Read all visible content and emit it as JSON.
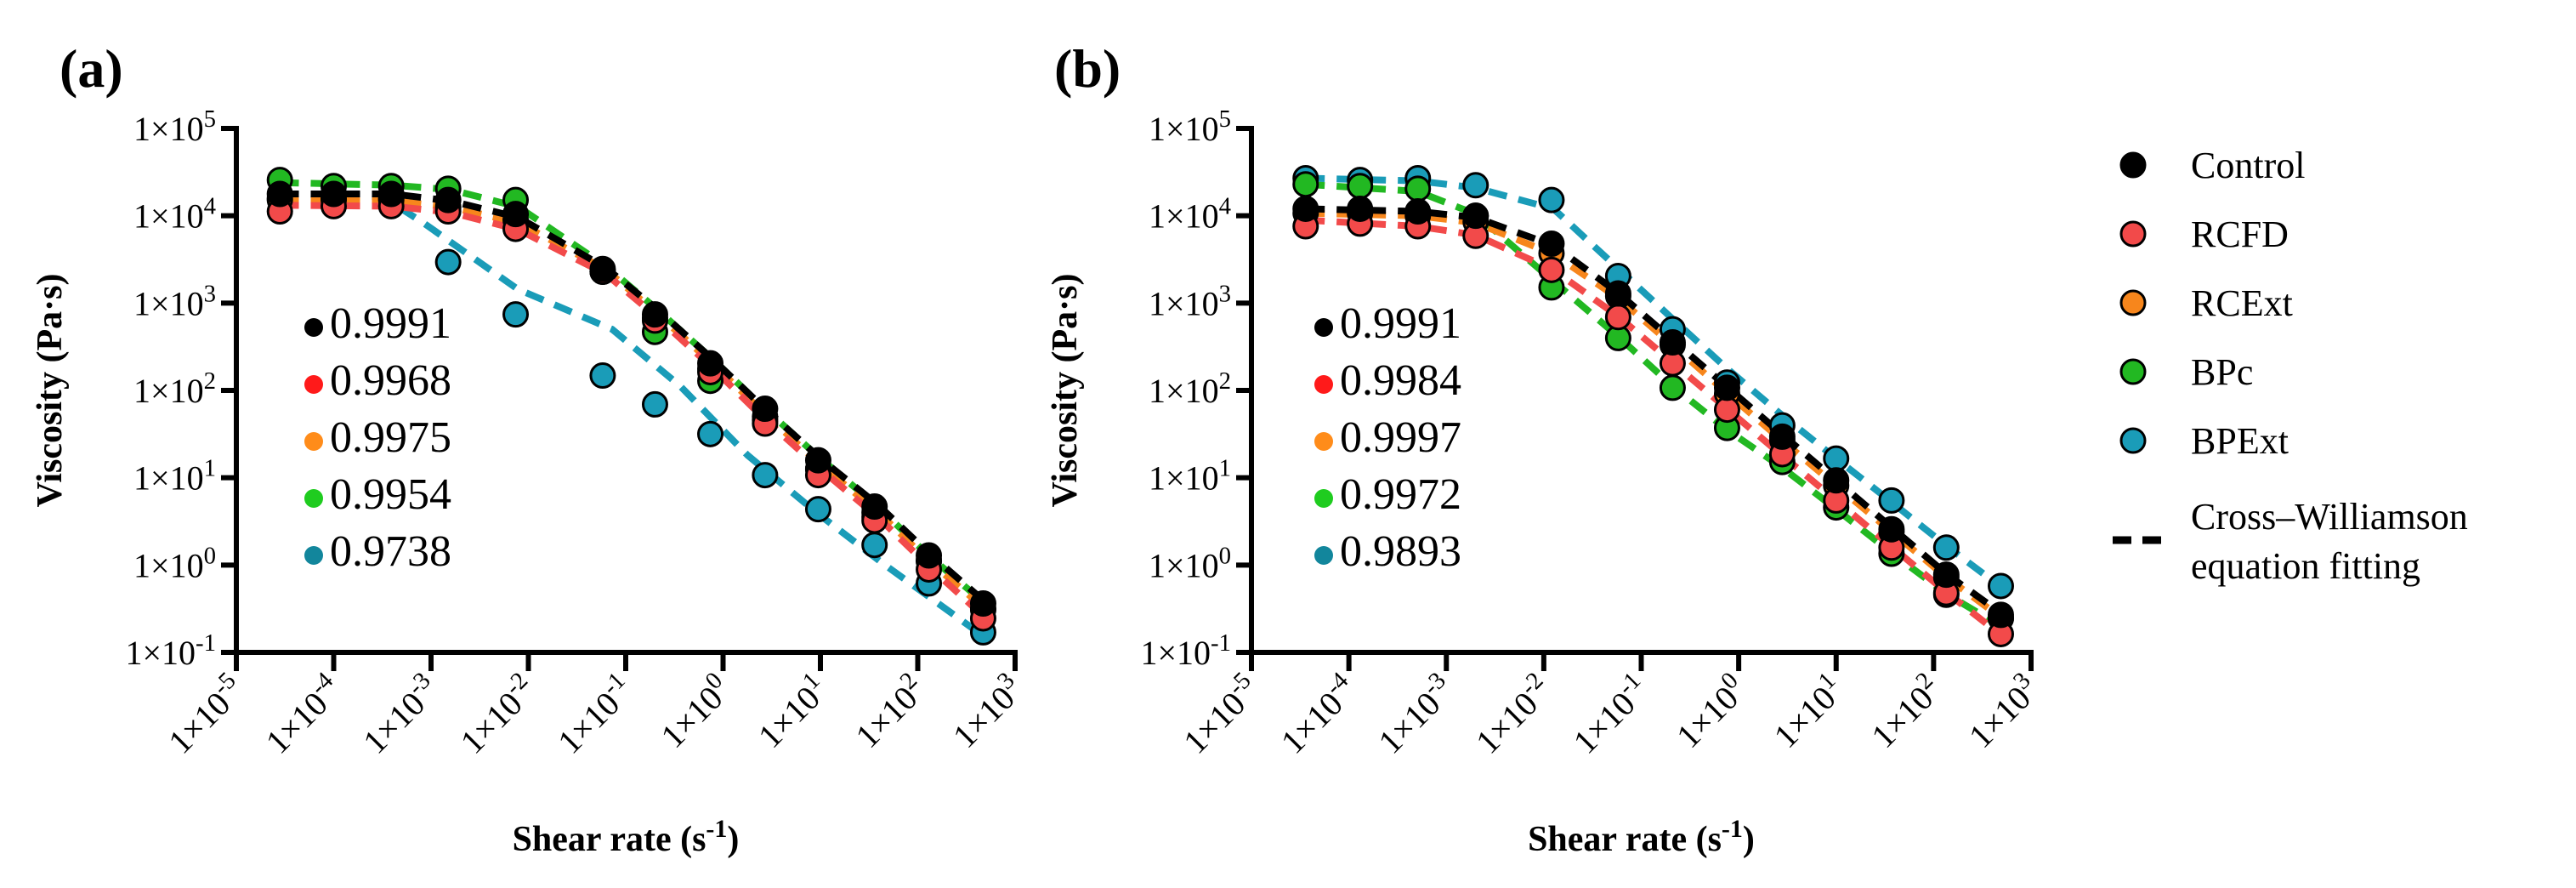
{
  "colors": {
    "Control": "#000000",
    "RCFD": "#f24a4a",
    "RCExt": "#f7861c",
    "BPc": "#22b822",
    "BPExt": "#1a9cb8"
  },
  "annotation_colors": [
    "#000000",
    "#ff1a1a",
    "#ff8c1a",
    "#1fcc1f",
    "#12869c"
  ],
  "legend": {
    "items": [
      "Control",
      "RCFD",
      "RCExt",
      "BPc",
      "BPExt"
    ],
    "fit_label_line1": "Cross–Williamson",
    "fit_label_line2": "equation fitting"
  },
  "chart_data": [
    {
      "type": "scatter",
      "panel_label": "(a)",
      "xlabel": "Shear rate (s",
      "xlabel_sup": "-1",
      "xlabel_end": ")",
      "ylabel": "Viscosity (Pa·s)",
      "xscale": "log",
      "yscale": "log",
      "xlim": [
        1e-05,
        1000.0
      ],
      "ylim": [
        0.1,
        100000.0
      ],
      "xticks": [
        {
          "base": "1×10",
          "exp": "-5"
        },
        {
          "base": "1×10",
          "exp": "-4"
        },
        {
          "base": "1×10",
          "exp": "-3"
        },
        {
          "base": "1×10",
          "exp": "-2"
        },
        {
          "base": "1×10",
          "exp": "-1"
        },
        {
          "base": "1×10",
          "exp": "0"
        },
        {
          "base": "1×10",
          "exp": "1"
        },
        {
          "base": "1×10",
          "exp": "2"
        },
        {
          "base": "1×10",
          "exp": "3"
        }
      ],
      "yticks": [
        {
          "base": "1×10",
          "exp": "5"
        },
        {
          "base": "1×10",
          "exp": "4"
        },
        {
          "base": "1×10",
          "exp": "3"
        },
        {
          "base": "1×10",
          "exp": "2"
        },
        {
          "base": "1×10",
          "exp": "1"
        },
        {
          "base": "1×10",
          "exp": "0"
        },
        {
          "base": "1×10",
          "exp": "-1"
        }
      ],
      "r2_values": [
        "0.9991",
        "0.9968",
        "0.9975",
        "0.9954",
        "0.9738"
      ],
      "x": [
        2.8e-05,
        0.0001,
        0.00039,
        0.0015,
        0.0074,
        0.058,
        0.2,
        0.74,
        2.7,
        9.5,
        36,
        130,
        470
      ],
      "series": [
        {
          "name": "Control",
          "log10_y": [
            4.25,
            4.25,
            4.25,
            4.18,
            4.02,
            3.39,
            2.87,
            2.31,
            1.79,
            1.2,
            0.67,
            0.11,
            -0.44
          ]
        },
        {
          "name": "RCFD",
          "log10_y": [
            4.05,
            4.11,
            4.11,
            4.05,
            3.85,
            3.36,
            2.8,
            2.21,
            1.62,
            1.03,
            0.51,
            -0.05,
            -0.61
          ]
        },
        {
          "name": "RCExt",
          "log10_y": [
            4.18,
            4.18,
            4.18,
            4.1,
            3.95,
            3.36,
            2.83,
            2.25,
            1.7,
            1.1,
            0.6,
            0.05,
            -0.5
          ]
        },
        {
          "name": "BPc",
          "log10_y": [
            4.41,
            4.34,
            4.34,
            4.31,
            4.18,
            3.36,
            2.67,
            2.11,
            1.66,
            1.1,
            0.55,
            0.05,
            -0.51
          ]
        },
        {
          "name": "BPExt",
          "log10_y": [
            4.2,
            4.2,
            4.2,
            3.47,
            2.87,
            2.17,
            1.84,
            1.5,
            1.03,
            0.64,
            0.23,
            -0.21,
            -0.77
          ]
        }
      ],
      "fits": [
        {
          "name": "Control",
          "log10_x": [
            -4.55,
            -3.4,
            -2.8,
            -2.1,
            -1.2,
            -0.7,
            -0.1,
            0.4,
            1.0,
            1.6,
            2.1,
            2.67
          ],
          "log10_y": [
            4.25,
            4.25,
            4.17,
            3.98,
            3.4,
            2.95,
            2.35,
            1.82,
            1.22,
            0.68,
            0.15,
            -0.4
          ]
        },
        {
          "name": "RCFD",
          "log10_x": [
            -4.55,
            -3.4,
            -2.8,
            -2.1,
            -1.2,
            -0.7,
            -0.1,
            0.4,
            1.0,
            1.6,
            2.1,
            2.67
          ],
          "log10_y": [
            4.12,
            4.11,
            4.04,
            3.84,
            3.33,
            2.86,
            2.25,
            1.7,
            1.1,
            0.54,
            0.0,
            -0.58
          ]
        },
        {
          "name": "RCExt",
          "log10_x": [
            -4.55,
            -3.4,
            -2.8,
            -2.1,
            -1.2,
            -0.7,
            -0.1,
            0.4,
            1.0,
            1.6,
            2.1,
            2.67
          ],
          "log10_y": [
            4.18,
            4.17,
            4.1,
            3.92,
            3.38,
            2.9,
            2.3,
            1.76,
            1.15,
            0.6,
            0.06,
            -0.48
          ]
        },
        {
          "name": "BPc",
          "log10_x": [
            -4.55,
            -3.4,
            -2.8,
            -2.1,
            -1.2,
            -0.7,
            -0.1,
            0.4,
            1.0,
            1.6,
            2.1,
            2.67
          ],
          "log10_y": [
            4.38,
            4.35,
            4.3,
            4.1,
            3.42,
            2.95,
            2.35,
            1.82,
            1.22,
            0.66,
            0.12,
            -0.42
          ]
        },
        {
          "name": "BPExt",
          "log10_x": [
            -4.55,
            -3.5,
            -3.08,
            -2.11,
            -1.14,
            -0.44,
            0.25,
            0.95,
            1.64,
            2.62
          ],
          "log10_y": [
            4.25,
            4.22,
            3.92,
            3.16,
            2.7,
            2.05,
            1.26,
            0.61,
            0.02,
            -0.77
          ]
        }
      ]
    },
    {
      "type": "scatter",
      "panel_label": "(b)",
      "xlabel": "Shear rate (s",
      "xlabel_sup": "-1",
      "xlabel_end": ")",
      "ylabel": "Viscosity (Pa·s)",
      "xscale": "log",
      "yscale": "log",
      "xlim": [
        1e-05,
        1000.0
      ],
      "ylim": [
        0.1,
        100000.0
      ],
      "xticks": [
        {
          "base": "1×10",
          "exp": "-5"
        },
        {
          "base": "1×10",
          "exp": "-4"
        },
        {
          "base": "1×10",
          "exp": "-3"
        },
        {
          "base": "1×10",
          "exp": "-2"
        },
        {
          "base": "1×10",
          "exp": "-1"
        },
        {
          "base": "1×10",
          "exp": "0"
        },
        {
          "base": "1×10",
          "exp": "1"
        },
        {
          "base": "1×10",
          "exp": "2"
        },
        {
          "base": "1×10",
          "exp": "3"
        }
      ],
      "yticks": [
        {
          "base": "1×10",
          "exp": "5"
        },
        {
          "base": "1×10",
          "exp": "4"
        },
        {
          "base": "1×10",
          "exp": "3"
        },
        {
          "base": "1×10",
          "exp": "2"
        },
        {
          "base": "1×10",
          "exp": "1"
        },
        {
          "base": "1×10",
          "exp": "0"
        },
        {
          "base": "1×10",
          "exp": "-1"
        }
      ],
      "r2_values": [
        "0.9991",
        "0.9984",
        "0.9997",
        "0.9972",
        "0.9893"
      ],
      "x": [
        3.6e-05,
        0.00013,
        0.00051,
        0.002,
        0.012,
        0.058,
        0.21,
        0.76,
        2.8,
        10,
        37,
        135,
        490
      ],
      "series": [
        {
          "name": "Control",
          "log10_y": [
            4.08,
            4.08,
            4.05,
            4.0,
            3.68,
            3.11,
            2.55,
            2.03,
            1.47,
            0.97,
            0.41,
            -0.11,
            -0.57
          ]
        },
        {
          "name": "RCFD",
          "log10_y": [
            3.88,
            3.91,
            3.88,
            3.77,
            3.38,
            2.84,
            2.31,
            1.78,
            1.27,
            0.74,
            0.2,
            -0.32,
            -0.79
          ]
        },
        {
          "name": "RCExt",
          "log10_y": [
            4.03,
            4.03,
            4.0,
            3.93,
            3.57,
            3.08,
            2.52,
            1.96,
            1.43,
            0.91,
            0.38,
            -0.14,
            -0.61
          ]
        },
        {
          "name": "BPc",
          "log10_y": [
            4.36,
            4.34,
            4.31,
            4.0,
            3.18,
            2.6,
            2.03,
            1.57,
            1.18,
            0.66,
            0.13,
            -0.34,
            -0.61
          ]
        },
        {
          "name": "BPExt",
          "log10_y": [
            4.43,
            4.41,
            4.43,
            4.35,
            4.18,
            3.31,
            2.7,
            2.09,
            1.6,
            1.22,
            0.74,
            0.2,
            -0.24
          ]
        }
      ],
      "fits": [
        {
          "name": "Control",
          "log10_x": [
            -4.44,
            -3.3,
            -2.7,
            -1.9,
            -1.24,
            -0.68,
            -0.12,
            0.44,
            1.0,
            1.57,
            2.13,
            2.69
          ],
          "log10_y": [
            4.08,
            4.05,
            3.98,
            3.66,
            3.12,
            2.58,
            2.04,
            1.5,
            0.97,
            0.43,
            -0.1,
            -0.55
          ]
        },
        {
          "name": "RCFD",
          "log10_x": [
            -4.44,
            -3.3,
            -2.7,
            -1.9,
            -1.24,
            -0.68,
            -0.12,
            0.44,
            1.0,
            1.57,
            2.13,
            2.69
          ],
          "log10_y": [
            3.95,
            3.88,
            3.78,
            3.38,
            2.85,
            2.32,
            1.79,
            1.26,
            0.74,
            0.21,
            -0.31,
            -0.8
          ]
        },
        {
          "name": "RCExt",
          "log10_x": [
            -4.44,
            -3.3,
            -2.7,
            -1.9,
            -1.24,
            -0.68,
            -0.12,
            0.44,
            1.0,
            1.57,
            2.13,
            2.69
          ],
          "log10_y": [
            4.03,
            4.0,
            3.92,
            3.56,
            3.06,
            2.52,
            1.97,
            1.43,
            0.91,
            0.38,
            -0.14,
            -0.6
          ]
        },
        {
          "name": "BPc",
          "log10_x": [
            -4.44,
            -3.3,
            -2.7,
            -1.9,
            -1.24,
            -0.68,
            -0.12,
            0.44,
            1.0,
            1.57,
            2.13,
            2.69
          ],
          "log10_y": [
            4.36,
            4.28,
            4.02,
            3.25,
            2.62,
            2.05,
            1.55,
            1.12,
            0.64,
            0.14,
            -0.33,
            -0.7
          ]
        },
        {
          "name": "BPExt",
          "log10_x": [
            -4.44,
            -3.3,
            -2.7,
            -1.9,
            -1.24,
            -0.68,
            -0.12,
            0.44,
            1.0,
            1.57,
            2.13,
            2.69
          ],
          "log10_y": [
            4.43,
            4.4,
            4.32,
            4.08,
            3.4,
            2.82,
            2.25,
            1.72,
            1.22,
            0.72,
            0.22,
            -0.25
          ]
        }
      ]
    }
  ]
}
